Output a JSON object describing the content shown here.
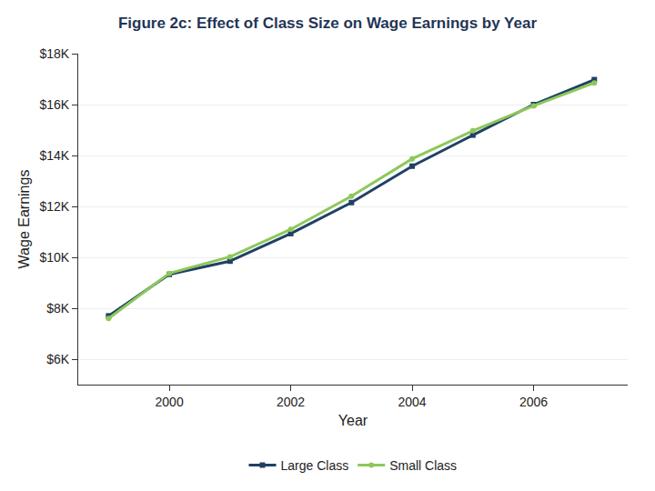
{
  "chart_data": {
    "type": "line",
    "title": "Figure 2c: Effect of Class Size on Wage Earnings by Year",
    "x_label": "Year",
    "y_label": "Wage Earnings",
    "x": [
      1999,
      2000,
      2001,
      2002,
      2003,
      2004,
      2005,
      2006,
      2007
    ],
    "series": [
      {
        "name": "Large Class",
        "color": "#1f4164",
        "marker": "square",
        "line_style": "solid",
        "values": [
          7700,
          9330,
          9850,
          10930,
          12150,
          13580,
          14800,
          16000,
          16980
        ]
      },
      {
        "name": "Small Class",
        "color": "#8dc85a",
        "marker": "circle",
        "line_style": "solid",
        "values": [
          7600,
          9370,
          10020,
          11100,
          12400,
          13870,
          14970,
          15950,
          16850
        ]
      }
    ],
    "xlim": [
      1998.5,
      2007.55
    ],
    "xticks": [
      2000,
      2002,
      2004,
      2006
    ],
    "ylim": [
      5000,
      18000
    ],
    "yticks": [
      {
        "value": 6000,
        "label": "$6K"
      },
      {
        "value": 8000,
        "label": "$8K"
      },
      {
        "value": 10000,
        "label": "$10K"
      },
      {
        "value": 12000,
        "label": "$12K"
      },
      {
        "value": 14000,
        "label": "$14K"
      },
      {
        "value": 16000,
        "label": "$16K"
      },
      {
        "value": 18000,
        "label": "$18K"
      }
    ],
    "grid": true,
    "legend": "bottom"
  }
}
